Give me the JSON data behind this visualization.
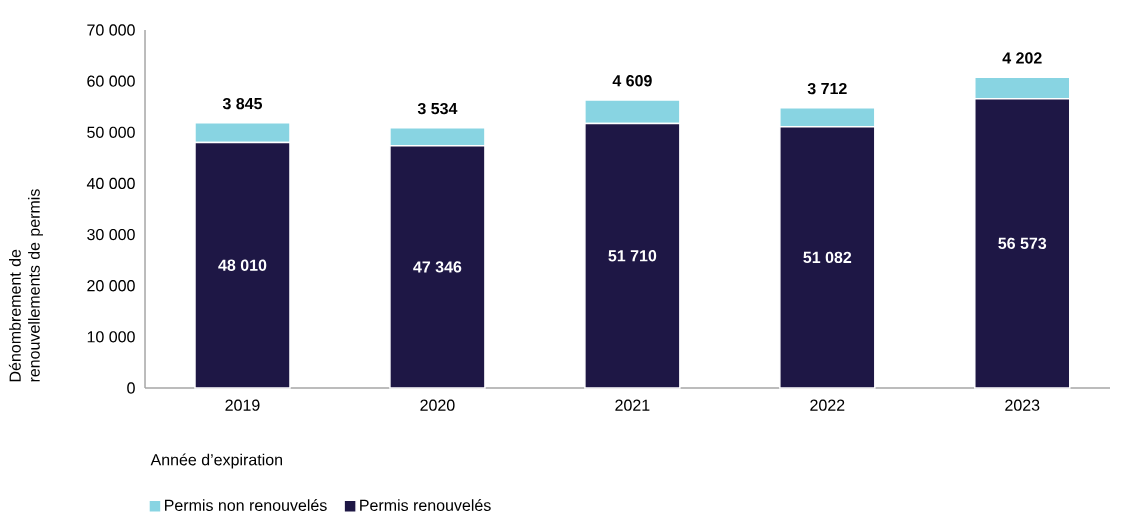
{
  "chart_data": {
    "type": "bar",
    "stacked": true,
    "categories": [
      "2019",
      "2020",
      "2021",
      "2022",
      "2023"
    ],
    "series": [
      {
        "name": "Permis renouvelés",
        "color": "#1e1745",
        "values": [
          48010,
          47346,
          51710,
          51082,
          56573
        ],
        "value_labels": [
          "48 010",
          "47 346",
          "51 710",
          "51 082",
          "56 573"
        ]
      },
      {
        "name": "Permis non renouvelés",
        "color": "#88d4e2",
        "values": [
          3845,
          3534,
          4609,
          3712,
          4202
        ],
        "value_labels": [
          "3 845",
          "3 534",
          "4 609",
          "3 712",
          "4 202"
        ]
      }
    ],
    "ylim": [
      0,
      70000
    ],
    "yticks": [
      0,
      {
        "value": 10000,
        "label": "10 000"
      },
      {
        "value": 20000,
        "label": "20 000"
      },
      {
        "value": 30000,
        "label": "30 000"
      },
      {
        "value": 40000,
        "label": "40 000"
      },
      {
        "value": 50000,
        "label": "50 000"
      },
      {
        "value": 60000,
        "label": "60 000"
      },
      {
        "value": 70000,
        "label": "70 000"
      }
    ],
    "xlabel": "Année d’expiration",
    "ylabel": "Dénombrement de renouvellements de permis",
    "legend": "bottom left"
  }
}
